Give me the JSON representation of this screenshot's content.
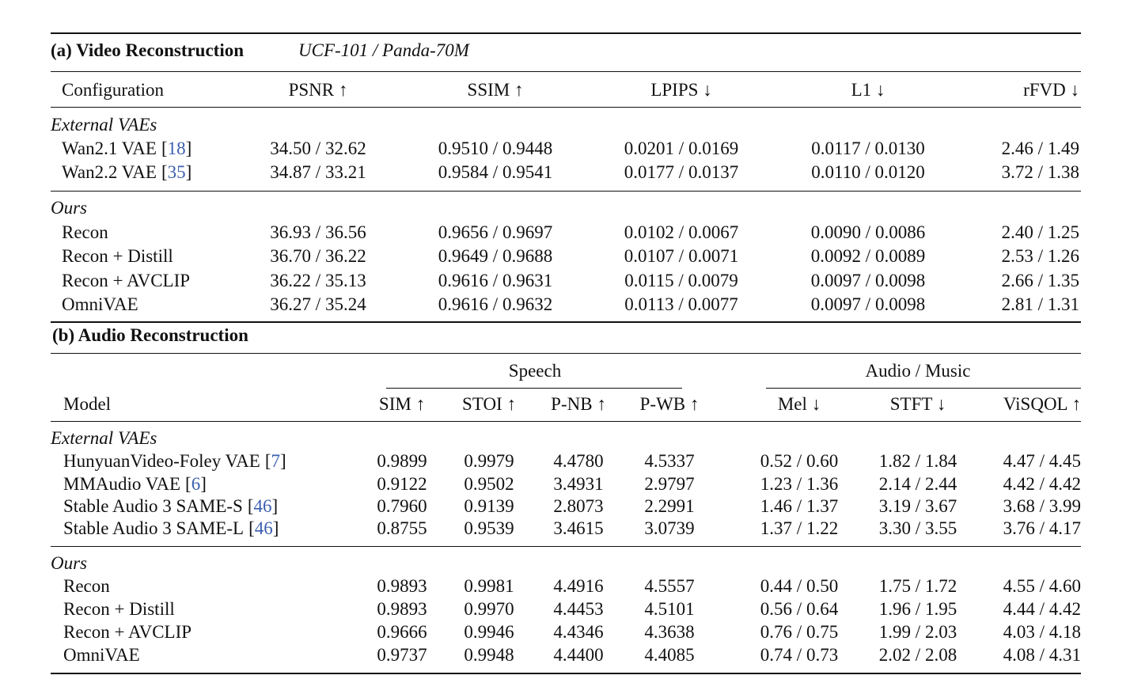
{
  "video": {
    "title": "(a) Video Reconstruction",
    "subtitle": "UCF-101 / Panda-70M",
    "columns": [
      "Configuration",
      "PSNR ↑",
      "SSIM ↑",
      "LPIPS ↓",
      "L1 ↓",
      "rFVD ↓"
    ],
    "groups": [
      {
        "label": "External VAEs",
        "rows": [
          {
            "name": "Wan2.1 VAE",
            "ref": {
              "open": "[",
              "num": "18",
              "close": "]"
            },
            "cells": [
              "34.50 / 32.62",
              "0.9510 / 0.9448",
              "0.0201 / 0.0169",
              "0.0117 / 0.0130",
              "2.46 / 1.49"
            ]
          },
          {
            "name": "Wan2.2 VAE",
            "ref": {
              "open": "[",
              "num": "35",
              "close": "]"
            },
            "cells": [
              "34.87 / 33.21",
              "0.9584 / 0.9541",
              "0.0177 / 0.0137",
              "0.0110 / 0.0120",
              "3.72 / 1.38"
            ]
          }
        ]
      },
      {
        "label": "Ours",
        "rows": [
          {
            "name": "Recon",
            "cells": [
              "36.93 / 36.56",
              "0.9656 / 0.9697",
              "0.0102 / 0.0067",
              "0.0090 / 0.0086",
              "2.40 / 1.25"
            ]
          },
          {
            "name": "Recon + Distill",
            "cells": [
              "36.70 / 36.22",
              "0.9649 / 0.9688",
              "0.0107 / 0.0071",
              "0.0092 / 0.0089",
              "2.53 / 1.26"
            ]
          },
          {
            "name": "Recon + AVCLIP",
            "cells": [
              "36.22 / 35.13",
              "0.9616 / 0.9631",
              "0.0115 / 0.0079",
              "0.0097 / 0.0098",
              "2.66 / 1.35"
            ]
          },
          {
            "name": "OmniVAE",
            "cells": [
              "36.27 / 35.24",
              "0.9616 / 0.9632",
              "0.0113 / 0.0077",
              "0.0097 / 0.0098",
              "2.81 / 1.31"
            ]
          }
        ]
      }
    ]
  },
  "audio": {
    "title": "(b) Audio Reconstruction",
    "column_groups": [
      "Speech",
      "Audio / Music"
    ],
    "columns": [
      "Model",
      "SIM ↑",
      "STOI ↑",
      "P-NB ↑",
      "P-WB ↑",
      "Mel ↓",
      "STFT ↓",
      "ViSQOL ↑"
    ],
    "groups": [
      {
        "label": "External VAEs",
        "rows": [
          {
            "name": "HunyuanVideo-Foley VAE",
            "ref": {
              "open": "[",
              "num": "7",
              "close": "]"
            },
            "cells": [
              "0.9899",
              "0.9979",
              "4.4780",
              "4.5337",
              "0.52 / 0.60",
              "1.82 / 1.84",
              "4.47 / 4.45"
            ]
          },
          {
            "name": "MMAudio VAE",
            "ref": {
              "open": "[",
              "num": "6",
              "close": "]"
            },
            "cells": [
              "0.9122",
              "0.9502",
              "3.4931",
              "2.9797",
              "1.23 / 1.36",
              "2.14 / 2.44",
              "4.42 / 4.42"
            ]
          },
          {
            "name": "Stable Audio 3 SAME-S",
            "ref": {
              "open": "[",
              "num": "46",
              "close": "]"
            },
            "cells": [
              "0.7960",
              "0.9139",
              "2.8073",
              "2.2991",
              "1.46 / 1.37",
              "3.19 / 3.67",
              "3.68 / 3.99"
            ]
          },
          {
            "name": "Stable Audio 3 SAME-L",
            "ref": {
              "open": "[",
              "num": "46",
              "close": "]"
            },
            "cells": [
              "0.8755",
              "0.9539",
              "3.4615",
              "3.0739",
              "1.37 / 1.22",
              "3.30 / 3.55",
              "3.76 / 4.17"
            ]
          }
        ]
      },
      {
        "label": "Ours",
        "rows": [
          {
            "name": "Recon",
            "cells": [
              "0.9893",
              "0.9981",
              "4.4916",
              "4.5557",
              "0.44 / 0.50",
              "1.75 / 1.72",
              "4.55 / 4.60"
            ]
          },
          {
            "name": "Recon + Distill",
            "cells": [
              "0.9893",
              "0.9970",
              "4.4453",
              "4.5101",
              "0.56 / 0.64",
              "1.96 / 1.95",
              "4.44 / 4.42"
            ]
          },
          {
            "name": "Recon + AVCLIP",
            "cells": [
              "0.9666",
              "0.9946",
              "4.4346",
              "4.3638",
              "0.76 / 0.75",
              "1.99 / 2.03",
              "4.03 / 4.18"
            ]
          },
          {
            "name": "OmniVAE",
            "cells": [
              "0.9737",
              "0.9948",
              "4.4400",
              "4.4085",
              "0.74 / 0.73",
              "2.02 / 2.08",
              "4.08 / 4.31"
            ]
          }
        ]
      }
    ]
  }
}
